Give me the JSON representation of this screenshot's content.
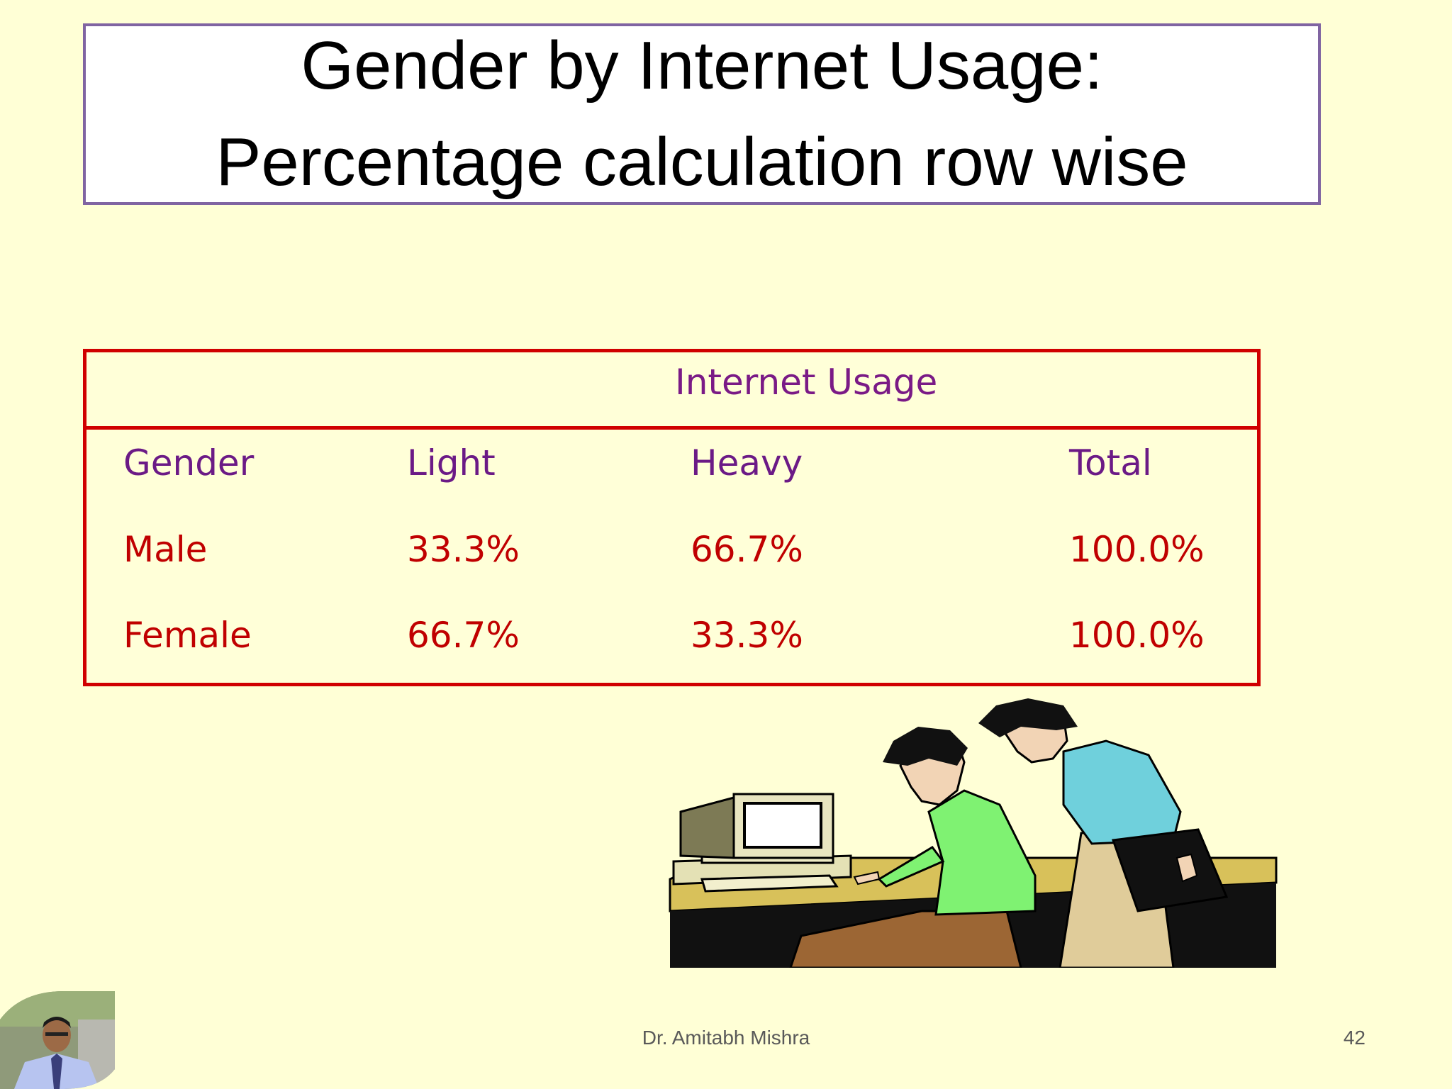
{
  "slide": {
    "title_line1": "Gender by Internet Usage:",
    "title_line2": "Percentage calculation row wise"
  },
  "table": {
    "group_header": "Internet Usage",
    "columns": [
      "Gender",
      "Light",
      "Heavy",
      "Total"
    ],
    "rows": [
      [
        "Male",
        "33.3%",
        "66.7%",
        "100.0%"
      ],
      [
        "Female",
        "66.7%",
        "33.3%",
        "100.0%"
      ]
    ]
  },
  "footer": {
    "author": "Dr. Amitabh Mishra",
    "page_number": "42"
  },
  "colors": {
    "background": "#ffffd6",
    "title_border": "#8064a2",
    "table_border": "#d00000",
    "header_text": "#6b1a86",
    "value_text": "#c00000"
  }
}
